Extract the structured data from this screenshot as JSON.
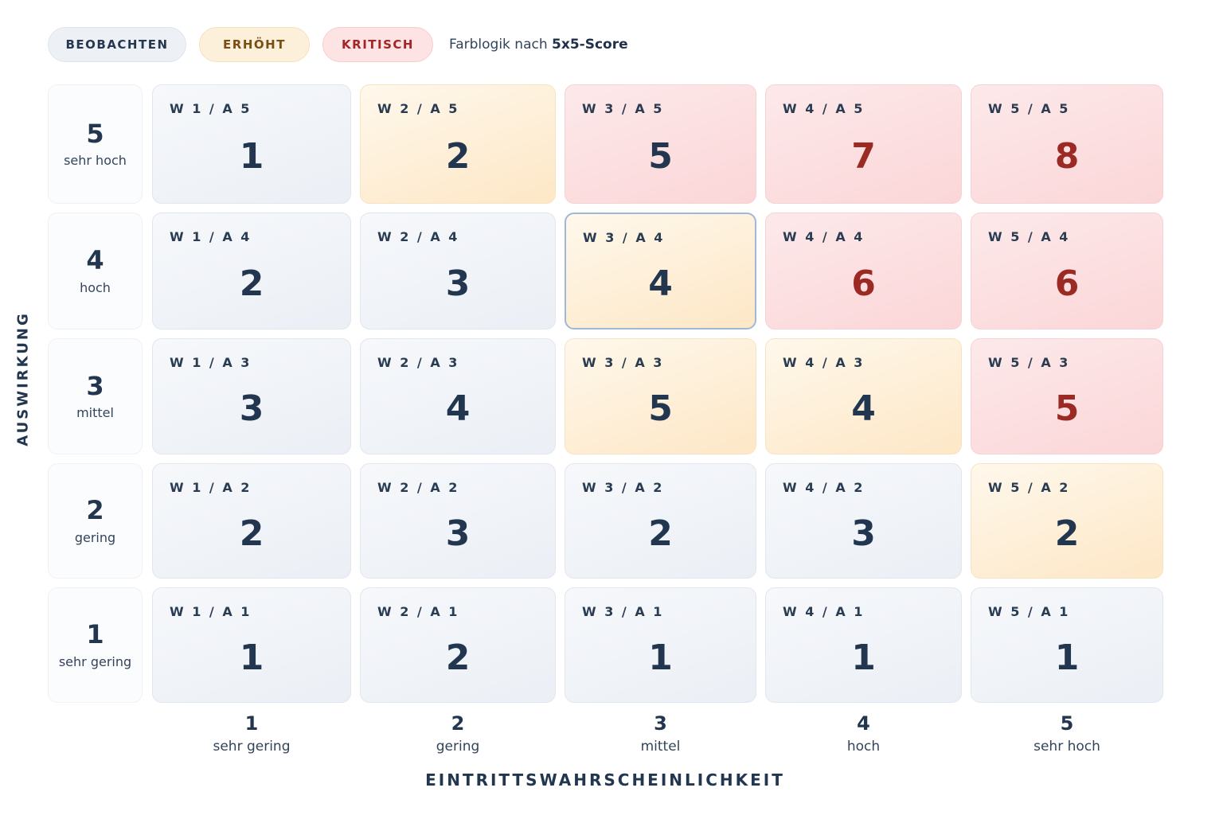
{
  "legend": {
    "items": [
      {
        "label": "BEOBACHTEN",
        "level": "low",
        "color": "#edf1f6"
      },
      {
        "label": "ERHÖHT",
        "level": "mid",
        "color": "#fdf0db"
      },
      {
        "label": "KRITISCH",
        "level": "high",
        "color": "#fde3e3"
      }
    ],
    "note_prefix": "Farblogik nach ",
    "note_bold": "5x5-Score"
  },
  "chart_data": {
    "type": "heatmap",
    "xlabel": "EINTRITTSWAHRSCHEINLICHKEIT",
    "ylabel": "AUSWIRKUNG",
    "x_levels": [
      {
        "value": "1",
        "label": "sehr gering"
      },
      {
        "value": "2",
        "label": "gering"
      },
      {
        "value": "3",
        "label": "mittel"
      },
      {
        "value": "4",
        "label": "hoch"
      },
      {
        "value": "5",
        "label": "sehr hoch"
      }
    ],
    "y_levels": [
      {
        "value": "5",
        "label": "sehr hoch"
      },
      {
        "value": "4",
        "label": "hoch"
      },
      {
        "value": "3",
        "label": "mittel"
      },
      {
        "value": "2",
        "label": "gering"
      },
      {
        "value": "1",
        "label": "sehr gering"
      }
    ],
    "rows": [
      {
        "a": 5,
        "cells": [
          {
            "code": "W 1 / A 5",
            "score": 1,
            "level": "low"
          },
          {
            "code": "W 2 / A 5",
            "score": 2,
            "level": "mid"
          },
          {
            "code": "W 3 / A 5",
            "score": 5,
            "level": "high"
          },
          {
            "code": "W 4 / A 5",
            "score": 7,
            "level": "high"
          },
          {
            "code": "W 5 / A 5",
            "score": 8,
            "level": "high"
          }
        ]
      },
      {
        "a": 4,
        "cells": [
          {
            "code": "W 1 / A 4",
            "score": 2,
            "level": "low"
          },
          {
            "code": "W 2 / A 4",
            "score": 3,
            "level": "low"
          },
          {
            "code": "W 3 / A 4",
            "score": 4,
            "level": "mid",
            "selected": true
          },
          {
            "code": "W 4 / A 4",
            "score": 6,
            "level": "high"
          },
          {
            "code": "W 5 / A 4",
            "score": 6,
            "level": "high"
          }
        ]
      },
      {
        "a": 3,
        "cells": [
          {
            "code": "W 1 / A 3",
            "score": 3,
            "level": "low"
          },
          {
            "code": "W 2 / A 3",
            "score": 4,
            "level": "low"
          },
          {
            "code": "W 3 / A 3",
            "score": 5,
            "level": "mid"
          },
          {
            "code": "W 4 / A 3",
            "score": 4,
            "level": "mid"
          },
          {
            "code": "W 5 / A 3",
            "score": 5,
            "level": "high"
          }
        ]
      },
      {
        "a": 2,
        "cells": [
          {
            "code": "W 1 / A 2",
            "score": 2,
            "level": "low"
          },
          {
            "code": "W 2 / A 2",
            "score": 3,
            "level": "low"
          },
          {
            "code": "W 3 / A 2",
            "score": 2,
            "level": "low"
          },
          {
            "code": "W 4 / A 2",
            "score": 3,
            "level": "low"
          },
          {
            "code": "W 5 / A 2",
            "score": 2,
            "level": "mid"
          }
        ]
      },
      {
        "a": 1,
        "cells": [
          {
            "code": "W 1 / A 1",
            "score": 1,
            "level": "low"
          },
          {
            "code": "W 2 / A 1",
            "score": 2,
            "level": "low"
          },
          {
            "code": "W 3 / A 1",
            "score": 1,
            "level": "low"
          },
          {
            "code": "W 4 / A 1",
            "score": 1,
            "level": "low"
          },
          {
            "code": "W 5 / A 1",
            "score": 1,
            "level": "low"
          }
        ]
      }
    ],
    "colors": {
      "low": "#edf1f6",
      "mid": "#fdebd0",
      "high": "#fbdcdd",
      "score_text": "#22364f",
      "score_text_critical": "#9b2a24",
      "selection_border": "#9fb8d8"
    }
  }
}
